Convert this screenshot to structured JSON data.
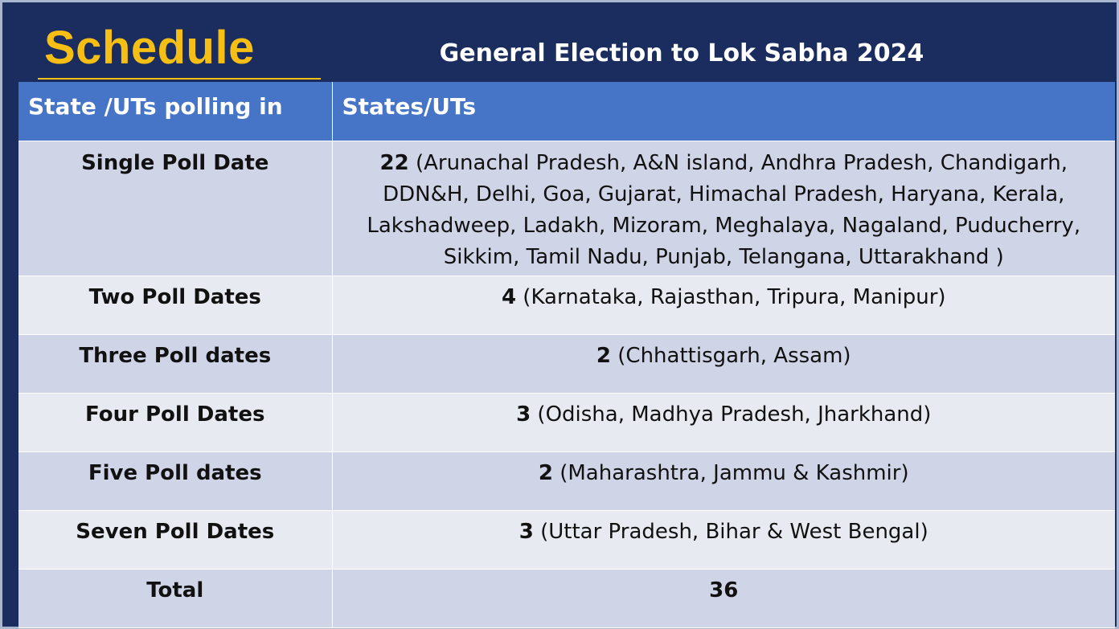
{
  "header": {
    "title": "Schedule",
    "subtitle": "General Election to Lok Sabha 2024"
  },
  "table": {
    "columns": [
      "State /UTs  polling in",
      "States/UTs"
    ],
    "rows": [
      {
        "label": "Single Poll Date",
        "count": "22",
        "states": " (Arunachal Pradesh, A&N island, Andhra Pradesh, Chandigarh, DDN&H, Delhi, Goa, Gujarat, Himachal Pradesh, Haryana, Kerala, Lakshadweep, Ladakh, Mizoram, Meghalaya, Nagaland, Puducherry, Sikkim, Tamil Nadu, Punjab, Telangana, Uttarakhand )"
      },
      {
        "label": "Two Poll Dates",
        "count": "4",
        "states": " (Karnataka, Rajasthan, Tripura, Manipur)"
      },
      {
        "label": "Three Poll dates",
        "count": "2",
        "states": " (Chhattisgarh, Assam)"
      },
      {
        "label": "Four Poll Dates",
        "count": "3",
        "states": " (Odisha, Madhya Pradesh, Jharkhand)"
      },
      {
        "label": "Five Poll dates",
        "count": "2",
        "states": " (Maharashtra, Jammu & Kashmir)"
      },
      {
        "label": "Seven Poll Dates",
        "count": "3",
        "states": " (Uttar Pradesh, Bihar & West Bengal)"
      }
    ],
    "total": {
      "label": "Total",
      "value": "36"
    }
  },
  "colors": {
    "background": "#1a2d5e",
    "title": "#f7bf14",
    "header_row": "#4674c6",
    "row_dark": "#cfd4e6",
    "row_light": "#e8eaf2"
  }
}
